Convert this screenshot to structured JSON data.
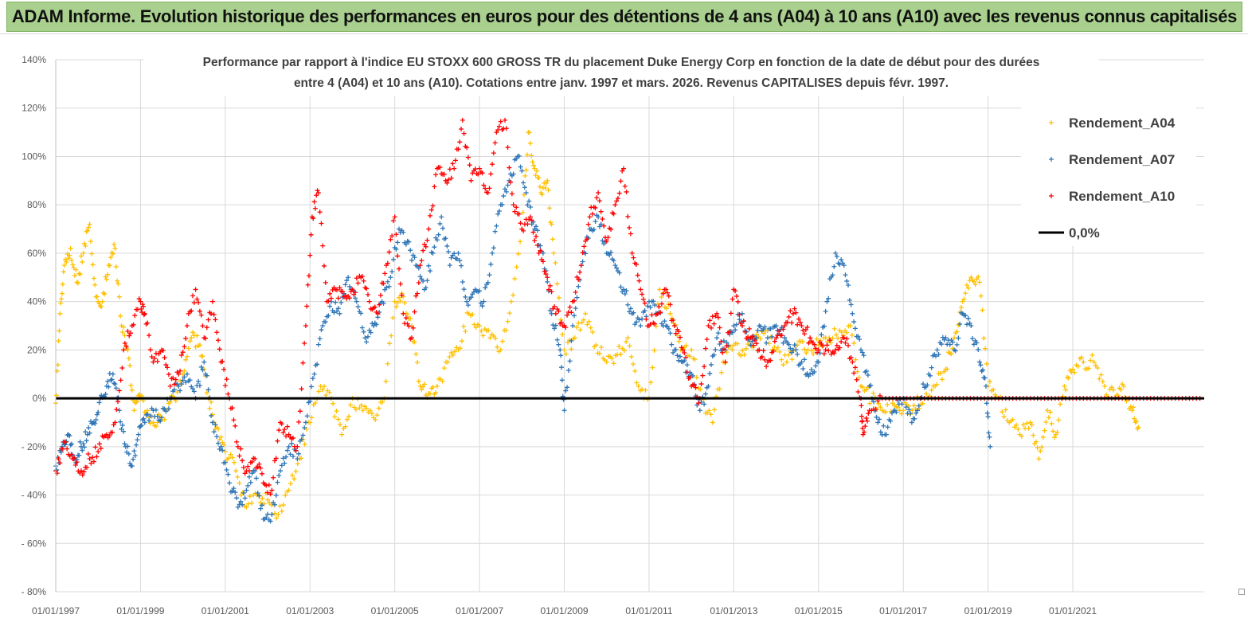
{
  "banner": {
    "title": "ADAM Informe. Evolution historique des performances en euros pour des détentions de 4 ans (A04) à 10 ans (A10) avec les revenus connus capitalisés"
  },
  "colors": {
    "banner_bg": "#a9d08e",
    "a04": "#ffc000",
    "a07": "#2e75b6",
    "a10": "#ff0000",
    "zero_line": "#000000",
    "grid": "#d9d9d9"
  },
  "chart_data": {
    "type": "scatter",
    "title_line1": "Performance par rapport à l'indice EU STOXX 600 GROSS TR  du placement Duke Energy Corp en fonction de la date de début pour des durées",
    "title_line2": "entre 4 (A04) et 10 ans (A10). Cotations entre janv. 1997 et mars. 2026. Revenus CAPITALISES depuis févr. 1997.",
    "xlabel": "",
    "ylabel": "",
    "x_range": [
      1997.0,
      2024.1
    ],
    "ylim": [
      -80,
      140
    ],
    "y_ticks": [
      -80,
      -60,
      -40,
      -20,
      0,
      20,
      40,
      60,
      80,
      100,
      120,
      140
    ],
    "y_tick_labels": [
      "- 80%",
      "- 60%",
      "- 40%",
      "- 20%",
      "0%",
      "20%",
      "40%",
      "60%",
      "80%",
      "100%",
      "120%",
      "140%"
    ],
    "x_ticks": [
      1997,
      1999,
      2001,
      2003,
      2005,
      2007,
      2009,
      2011,
      2013,
      2015,
      2017,
      2019,
      2021
    ],
    "x_tick_labels": [
      "01/01/1997",
      "01/01/1999",
      "01/01/2001",
      "01/01/2003",
      "01/01/2005",
      "01/01/2007",
      "01/01/2009",
      "01/01/2011",
      "01/01/2013",
      "01/01/2015",
      "01/01/2017",
      "01/01/2019",
      "01/01/2021"
    ],
    "legend_position": "top-right",
    "series": [
      {
        "name": "Rendement_A04",
        "marker": "+",
        "x": [
          1997.0,
          1997.1,
          1997.2,
          1997.35,
          1997.5,
          1997.65,
          1997.8,
          1997.95,
          1998.1,
          1998.25,
          1998.4,
          1998.55,
          1998.7,
          1998.85,
          1999.0,
          1999.2,
          1999.4,
          1999.6,
          1999.8,
          2000.0,
          2000.2,
          2000.4,
          2000.6,
          2000.8,
          2001.0,
          2001.25,
          2001.5,
          2001.75,
          2002.0,
          2002.25,
          2002.5,
          2002.75,
          2003.0,
          2003.25,
          2003.5,
          2003.75,
          2004.0,
          2004.25,
          2004.5,
          2004.75,
          2005.0,
          2005.2,
          2005.4,
          2005.6,
          2005.8,
          2006.0,
          2006.25,
          2006.5,
          2006.75,
          2007.0,
          2007.25,
          2007.5,
          2007.75,
          2008.0,
          2008.15,
          2008.3,
          2008.45,
          2008.6,
          2008.75,
          2009.0,
          2009.25,
          2009.5,
          2009.75,
          2010.0,
          2010.25,
          2010.5,
          2010.75,
          2011.0,
          2011.25,
          2011.5,
          2011.75,
          2012.0,
          2012.25,
          2012.5,
          2012.75,
          2013.0,
          2013.25,
          2013.5,
          2013.75,
          2014.0,
          2014.25,
          2014.5,
          2014.75,
          2015.0,
          2015.25,
          2015.5,
          2015.75,
          2016.0,
          2016.25,
          2016.5,
          2016.75,
          2017.0,
          2017.25,
          2017.5,
          2017.75,
          2018.0,
          2018.2,
          2018.4,
          2018.6,
          2018.8,
          2019.0,
          2019.25,
          2019.5,
          2019.75,
          2020.0,
          2020.2,
          2020.4,
          2020.6,
          2020.8,
          2021.0,
          2021.25,
          2021.5,
          2021.75,
          2022.0,
          2022.2,
          2022.4,
          2022.55
        ],
        "values": [
          -2,
          35,
          55,
          62,
          48,
          60,
          72,
          42,
          40,
          55,
          62,
          30,
          20,
          -5,
          0,
          -8,
          -10,
          -5,
          0,
          10,
          25,
          22,
          0,
          -12,
          -22,
          -30,
          -45,
          -40,
          -42,
          -48,
          -38,
          -25,
          -10,
          5,
          0,
          -15,
          0,
          -5,
          -8,
          0,
          40,
          42,
          30,
          5,
          2,
          5,
          15,
          20,
          35,
          30,
          25,
          20,
          40,
          70,
          110,
          95,
          85,
          90,
          60,
          20,
          25,
          35,
          22,
          15,
          18,
          25,
          5,
          0,
          45,
          35,
          20,
          20,
          0,
          -10,
          15,
          22,
          18,
          25,
          28,
          20,
          15,
          22,
          20,
          22,
          25,
          28,
          30,
          5,
          0,
          -5,
          -2,
          -5,
          -3,
          0,
          5,
          12,
          25,
          40,
          50,
          48,
          5,
          0,
          -10,
          -15,
          -10,
          -25,
          -5,
          -15,
          5,
          12,
          15,
          15,
          5,
          0,
          5,
          -5,
          -12
        ]
      },
      {
        "name": "Rendement_A07",
        "marker": "+",
        "x": [
          1997.0,
          1997.15,
          1997.3,
          1997.45,
          1997.6,
          1997.75,
          1997.9,
          1998.05,
          1998.2,
          1998.35,
          1998.5,
          1998.65,
          1998.8,
          1998.95,
          1999.1,
          1999.3,
          1999.5,
          1999.7,
          1999.9,
          2000.1,
          2000.3,
          2000.5,
          2000.7,
          2000.9,
          2001.1,
          2001.3,
          2001.5,
          2001.7,
          2001.9,
          2002.1,
          2002.3,
          2002.5,
          2002.7,
          2002.9,
          2003.1,
          2003.3,
          2003.5,
          2003.7,
          2003.9,
          2004.1,
          2004.3,
          2004.5,
          2004.7,
          2004.9,
          2005.1,
          2005.3,
          2005.5,
          2005.7,
          2005.9,
          2006.1,
          2006.3,
          2006.5,
          2006.7,
          2006.9,
          2007.1,
          2007.3,
          2007.5,
          2007.7,
          2007.9,
          2008.1,
          2008.3,
          2008.5,
          2008.7,
          2008.9,
          2009.0,
          2009.2,
          2009.4,
          2009.6,
          2009.8,
          2010.0,
          2010.2,
          2010.4,
          2010.6,
          2010.8,
          2011.0,
          2011.2,
          2011.4,
          2011.6,
          2011.8,
          2012.0,
          2012.2,
          2012.4,
          2012.6,
          2012.8,
          2013.0,
          2013.2,
          2013.4,
          2013.6,
          2013.8,
          2014.0,
          2014.2,
          2014.4,
          2014.6,
          2014.8,
          2015.0,
          2015.2,
          2015.4,
          2015.6,
          2015.8,
          2016.0,
          2016.2,
          2016.4,
          2016.6,
          2016.8,
          2017.0,
          2017.2,
          2017.4,
          2017.6,
          2017.8,
          2018.0,
          2018.2,
          2018.4,
          2018.6,
          2018.8,
          2018.95,
          2019.05
        ],
        "values": [
          -28,
          -20,
          -15,
          -25,
          -20,
          -15,
          -10,
          0,
          5,
          10,
          -5,
          -20,
          -28,
          -15,
          -10,
          -5,
          -8,
          0,
          5,
          10,
          0,
          15,
          -10,
          -20,
          -35,
          -45,
          -38,
          -30,
          -50,
          -48,
          -30,
          -20,
          -25,
          -10,
          10,
          30,
          40,
          35,
          50,
          40,
          25,
          30,
          40,
          50,
          70,
          65,
          55,
          45,
          60,
          75,
          55,
          60,
          40,
          45,
          40,
          60,
          80,
          90,
          100,
          85,
          70,
          60,
          35,
          20,
          -5,
          30,
          55,
          70,
          75,
          60,
          55,
          45,
          35,
          30,
          40,
          35,
          30,
          20,
          15,
          10,
          -5,
          5,
          25,
          20,
          30,
          35,
          22,
          30,
          25,
          30,
          25,
          20,
          15,
          10,
          15,
          40,
          60,
          55,
          35,
          20,
          5,
          -10,
          -15,
          -5,
          0,
          -10,
          0,
          10,
          20,
          25,
          20,
          35,
          30,
          15,
          5,
          -20
        ]
      },
      {
        "name": "Rendement_A10",
        "marker": "+",
        "x": [
          1997.0,
          1997.2,
          1997.4,
          1997.6,
          1997.8,
          1998.0,
          1998.2,
          1998.4,
          1998.6,
          1998.8,
          1999.0,
          1999.1,
          1999.3,
          1999.5,
          1999.7,
          1999.9,
          2000.1,
          2000.3,
          2000.5,
          2000.7,
          2000.9,
          2001.1,
          2001.3,
          2001.5,
          2001.7,
          2001.9,
          2002.1,
          2002.3,
          2002.5,
          2002.7,
          2002.9,
          2003.05,
          2003.2,
          2003.4,
          2003.6,
          2003.8,
          2004.0,
          2004.2,
          2004.4,
          2004.6,
          2004.8,
          2005.0,
          2005.2,
          2005.4,
          2005.6,
          2005.8,
          2006.0,
          2006.2,
          2006.4,
          2006.6,
          2006.8,
          2007.0,
          2007.2,
          2007.4,
          2007.6,
          2007.8,
          2008.0,
          2008.2,
          2008.4,
          2008.6,
          2008.8,
          2009.0,
          2009.2,
          2009.4,
          2009.6,
          2009.8,
          2010.0,
          2010.2,
          2010.4,
          2010.6,
          2010.8,
          2011.0,
          2011.2,
          2011.4,
          2011.6,
          2011.8,
          2012.0,
          2012.2,
          2012.4,
          2012.6,
          2012.8,
          2013.0,
          2013.2,
          2013.4,
          2013.6,
          2013.8,
          2014.0,
          2014.2,
          2014.4,
          2014.6,
          2014.8,
          2015.0,
          2015.2,
          2015.4,
          2015.6,
          2015.8,
          2016.0,
          2016.05,
          2016.2,
          2016.5,
          2017.0,
          2017.5,
          2018.0,
          2018.5,
          2019.0,
          2019.5,
          2020.0,
          2020.5,
          2021.0,
          2021.5,
          2022.0,
          2022.5,
          2023.0,
          2023.5,
          2024.0
        ],
        "values": [
          -30,
          -18,
          -25,
          -30,
          -25,
          -22,
          -15,
          -10,
          20,
          30,
          40,
          35,
          15,
          20,
          5,
          10,
          30,
          45,
          25,
          40,
          15,
          0,
          -20,
          -30,
          -25,
          -35,
          -38,
          -10,
          -15,
          -20,
          30,
          75,
          85,
          40,
          45,
          42,
          45,
          50,
          40,
          35,
          55,
          75,
          35,
          25,
          55,
          70,
          95,
          90,
          95,
          115,
          90,
          95,
          85,
          110,
          115,
          80,
          70,
          75,
          60,
          50,
          35,
          30,
          40,
          55,
          75,
          85,
          65,
          80,
          95,
          60,
          45,
          30,
          35,
          45,
          30,
          20,
          5,
          0,
          30,
          35,
          15,
          45,
          30,
          25,
          20,
          15,
          25,
          30,
          35,
          30,
          25,
          20,
          22,
          20,
          25,
          15,
          0,
          -15,
          -5,
          0,
          0,
          0,
          0,
          0,
          0,
          0,
          0,
          0,
          0,
          0,
          0,
          0,
          0,
          0,
          0
        ]
      },
      {
        "name": "0,0%",
        "marker": "line",
        "x": [
          1997.0,
          2024.1
        ],
        "values": [
          0,
          0
        ]
      }
    ]
  }
}
